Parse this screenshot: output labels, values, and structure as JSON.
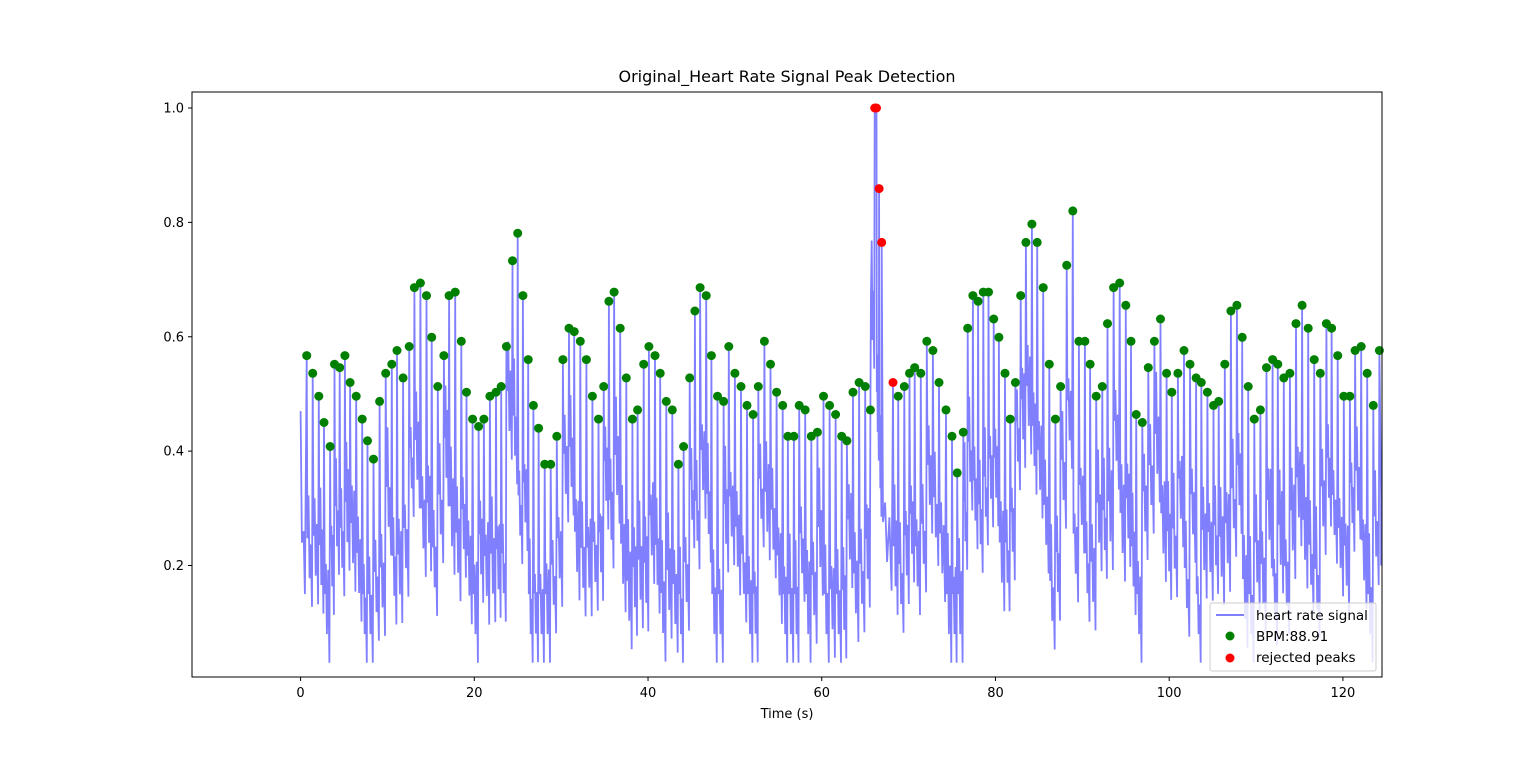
{
  "chart_data": {
    "type": "line",
    "title": "Original_Heart Rate Signal Peak Detection",
    "xlabel": "Time (s)",
    "ylabel": "",
    "xlim": [
      -12.5,
      124.5
    ],
    "ylim": [
      0.005,
      1.028
    ],
    "x_ticks": [
      0,
      20,
      40,
      60,
      80,
      100,
      120
    ],
    "y_ticks": [
      0.2,
      0.4,
      0.6,
      0.8,
      1.0
    ],
    "grid": false,
    "legend_placement": "lower-right",
    "colors": {
      "signal": "#8080ff",
      "accepted": "#008000",
      "rejected": "#ff0000"
    },
    "series": [
      {
        "name": "heart rate signal",
        "kind": "line",
        "color": "#8080ff"
      },
      {
        "name": "BPM:88.91",
        "kind": "scatter",
        "color": "#008000",
        "x": [
          0.7,
          1.4,
          2.1,
          2.7,
          3.4,
          3.9,
          4.5,
          5.1,
          5.7,
          6.4,
          7.1,
          7.7,
          8.4,
          9.1,
          9.8,
          10.5,
          11.1,
          11.8,
          12.5,
          13.1,
          13.8,
          14.5,
          15.1,
          15.8,
          16.5,
          17.1,
          17.8,
          18.5,
          19.1,
          19.8,
          20.5,
          21.1,
          21.8,
          22.5,
          23.1,
          23.7,
          24.4,
          25.0,
          25.6,
          26.2,
          26.8,
          27.4,
          28.1,
          28.8,
          29.5,
          30.2,
          30.9,
          31.5,
          32.2,
          32.9,
          33.6,
          34.3,
          34.9,
          35.5,
          36.1,
          36.8,
          37.5,
          38.2,
          38.8,
          39.5,
          40.1,
          40.8,
          41.4,
          42.1,
          42.8,
          43.5,
          44.1,
          44.8,
          45.4,
          46.0,
          46.7,
          47.3,
          48.0,
          48.7,
          49.3,
          50.0,
          50.7,
          51.4,
          52.1,
          52.7,
          53.4,
          54.1,
          54.8,
          55.5,
          56.1,
          56.8,
          57.4,
          58.1,
          58.8,
          59.5,
          60.2,
          60.9,
          61.6,
          62.3,
          62.9,
          63.6,
          64.3,
          65.0,
          65.6,
          68.8,
          69.5,
          70.1,
          70.7,
          71.4,
          72.1,
          72.8,
          73.5,
          74.3,
          75.0,
          75.6,
          76.3,
          76.8,
          77.4,
          78.0,
          78.6,
          79.2,
          79.8,
          80.4,
          81.1,
          81.7,
          82.3,
          82.9,
          83.5,
          84.2,
          84.8,
          85.5,
          86.2,
          86.9,
          87.5,
          88.2,
          88.9,
          89.6,
          90.3,
          90.9,
          91.6,
          92.3,
          92.9,
          93.6,
          94.3,
          95.0,
          95.6,
          96.2,
          96.9,
          97.6,
          98.3,
          99.0,
          99.7,
          100.3,
          101.0,
          101.7,
          102.4,
          103.1,
          103.7,
          104.4,
          105.1,
          105.7,
          106.4,
          107.1,
          107.8,
          108.4,
          109.1,
          109.8,
          110.5,
          111.2,
          111.9,
          112.5,
          113.2,
          113.9,
          114.6,
          115.3,
          116.0,
          116.7,
          117.4,
          118.1,
          118.7,
          119.4,
          120.1,
          120.8,
          121.4,
          122.1,
          122.8,
          123.5,
          124.2
        ],
        "y": [
          0.567,
          0.536,
          0.496,
          0.45,
          0.408,
          0.552,
          0.546,
          0.567,
          0.52,
          0.496,
          0.456,
          0.418,
          0.386,
          0.487,
          0.536,
          0.552,
          0.576,
          0.528,
          0.583,
          0.686,
          0.694,
          0.672,
          0.599,
          0.513,
          0.567,
          0.672,
          0.678,
          0.592,
          0.503,
          0.456,
          0.443,
          0.456,
          0.496,
          0.503,
          0.513,
          0.583,
          0.733,
          0.781,
          0.672,
          0.56,
          0.48,
          0.44,
          0.377,
          0.377,
          0.426,
          0.56,
          0.615,
          0.609,
          0.592,
          0.56,
          0.496,
          0.456,
          0.513,
          0.662,
          0.678,
          0.615,
          0.528,
          0.456,
          0.472,
          0.552,
          0.583,
          0.567,
          0.536,
          0.487,
          0.472,
          0.377,
          0.408,
          0.528,
          0.645,
          0.686,
          0.672,
          0.567,
          0.496,
          0.487,
          0.583,
          0.536,
          0.513,
          0.48,
          0.464,
          0.513,
          0.592,
          0.552,
          0.503,
          0.48,
          0.426,
          0.426,
          0.48,
          0.472,
          0.426,
          0.433,
          0.496,
          0.48,
          0.464,
          0.426,
          0.418,
          0.503,
          0.52,
          0.513,
          0.472,
          0.496,
          0.513,
          0.536,
          0.546,
          0.536,
          0.592,
          0.576,
          0.52,
          0.472,
          0.426,
          0.362,
          0.433,
          0.615,
          0.672,
          0.662,
          0.678,
          0.678,
          0.631,
          0.599,
          0.536,
          0.456,
          0.52,
          0.672,
          0.765,
          0.797,
          0.765,
          0.686,
          0.552,
          0.456,
          0.513,
          0.725,
          0.82,
          0.592,
          0.592,
          0.552,
          0.496,
          0.513,
          0.623,
          0.686,
          0.694,
          0.655,
          0.592,
          0.464,
          0.45,
          0.546,
          0.592,
          0.631,
          0.536,
          0.503,
          0.536,
          0.576,
          0.552,
          0.528,
          0.52,
          0.503,
          0.48,
          0.487,
          0.552,
          0.645,
          0.655,
          0.599,
          0.513,
          0.456,
          0.472,
          0.546,
          0.56,
          0.552,
          0.528,
          0.536,
          0.623,
          0.655,
          0.615,
          0.56,
          0.536,
          0.623,
          0.615,
          0.567,
          0.496,
          0.496,
          0.576,
          0.583,
          0.536,
          0.48,
          0.576
        ]
      },
      {
        "name": "rejected peaks",
        "kind": "scatter",
        "color": "#ff0000",
        "x": [
          66.1,
          66.3,
          66.6,
          66.9,
          68.2
        ],
        "y": [
          1.0,
          1.0,
          0.859,
          0.765,
          0.52
        ]
      }
    ]
  }
}
